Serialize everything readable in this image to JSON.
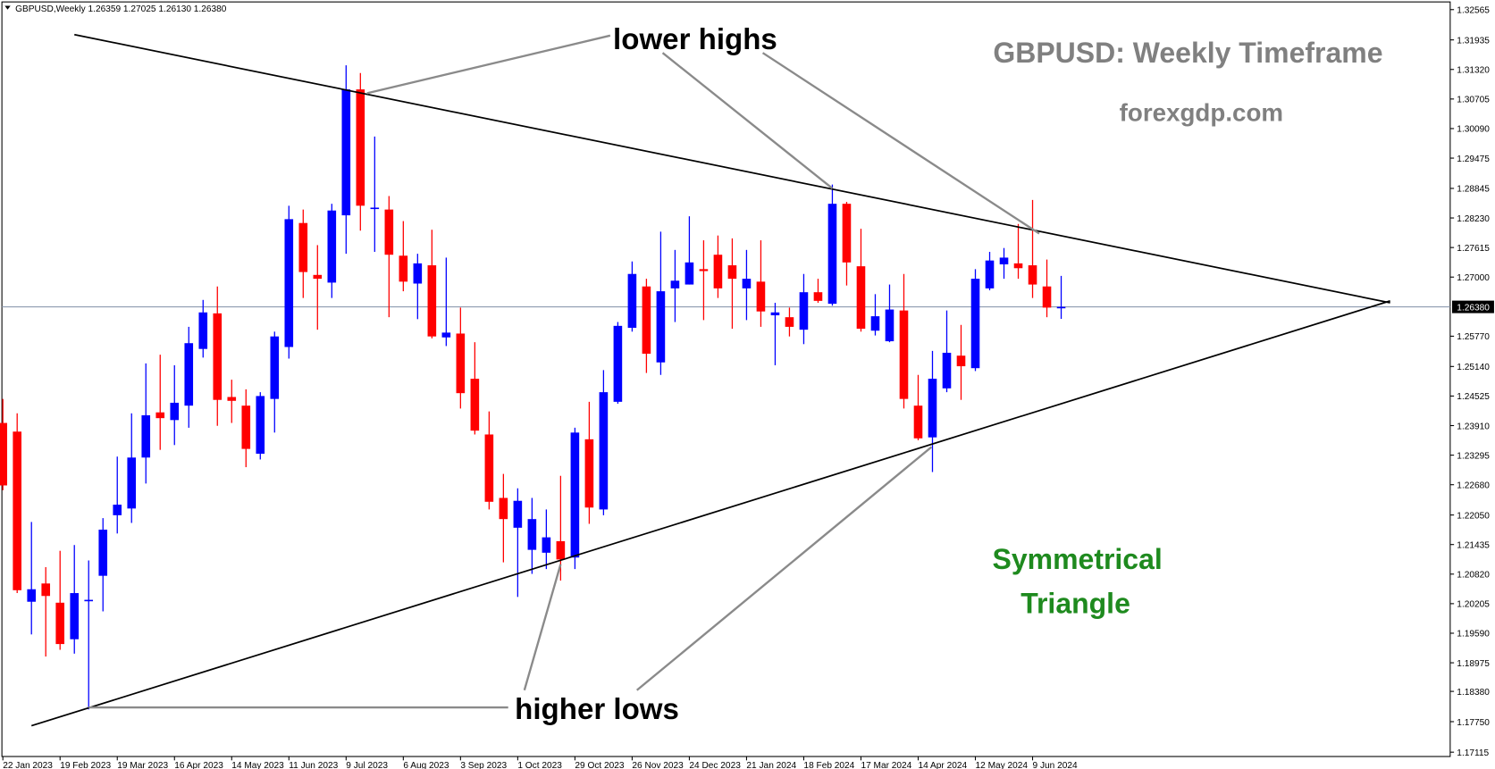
{
  "chart_data": {
    "type": "candlestick",
    "header": {
      "symbol": "GBPUSD,Weekly",
      "ohlc": [
        "1.26359",
        "1.27025",
        "1.26130",
        "1.26380"
      ]
    },
    "annotations": {
      "title": "GBPUSD: Weekly Timeframe",
      "site": "forexgdp.com",
      "pattern": [
        "Symmetrical",
        "Triangle"
      ],
      "upper": "lower highs",
      "lower": "higher lows"
    },
    "categories": [
      "22 Jan 2023",
      null,
      null,
      null,
      "19 Feb 2023",
      null,
      null,
      null,
      "19 Mar 2023",
      null,
      null,
      null,
      "16 Apr 2023",
      null,
      null,
      null,
      "14 May 2023",
      null,
      null,
      null,
      "11 Jun 2023",
      null,
      null,
      null,
      "9 Jul 2023",
      null,
      null,
      null,
      "6 Aug 2023",
      null,
      null,
      null,
      "3 Sep 2023",
      null,
      null,
      null,
      "1 Oct 2023",
      null,
      null,
      null,
      "29 Oct 2023",
      null,
      null,
      null,
      "26 Nov 2023",
      null,
      null,
      null,
      "24 Dec 2023",
      null,
      null,
      null,
      "21 Jan 2024",
      null,
      null,
      null,
      "18 Feb 2024",
      null,
      null,
      null,
      "17 Mar 2024",
      null,
      null,
      null,
      "14 Apr 2024",
      null,
      null,
      null,
      "12 May 2024",
      null,
      null,
      null,
      "9 Jun 2024",
      null,
      null
    ],
    "open": [
      1.23965,
      1.23785,
      1.20245,
      1.20625,
      1.20225,
      1.19465,
      1.20265,
      1.20785,
      1.22045,
      1.22185,
      1.23245,
      1.24185,
      1.24025,
      1.24325,
      1.25505,
      1.26245,
      1.24505,
      1.24325,
      1.23325,
      1.24465,
      1.25545,
      1.28125,
      1.27045,
      1.26885,
      1.28285,
      1.30905,
      1.28425,
      1.28405,
      1.27445,
      1.26865,
      1.27245,
      1.25745,
      1.25825,
      1.24885,
      1.23725,
      1.22405,
      1.21785,
      1.21325,
      1.21265,
      1.21505,
      1.21165,
      1.23625,
      1.22165,
      1.24405,
      1.25945,
      1.26805,
      1.25225,
      1.26765,
      1.26845,
      1.27165,
      1.27465,
      1.27245,
      1.26765,
      1.26905,
      1.26205,
      1.26165,
      1.25905,
      1.26685,
      1.26445,
      1.28525,
      1.27225,
      1.25885,
      1.25665,
      1.26305,
      1.24325,
      1.23665,
      1.24685,
      1.25365,
      1.25105,
      1.26765,
      1.27265,
      1.27285,
      1.27245,
      1.26805,
      1.26359
    ],
    "high": [
      1.24465,
      1.24165,
      1.21905,
      1.20965,
      1.21305,
      1.21425,
      1.21105,
      1.21985,
      1.23265,
      1.24165,
      1.25205,
      1.25385,
      1.25165,
      1.25965,
      1.26525,
      1.26805,
      1.24865,
      1.24665,
      1.24605,
      1.25865,
      1.28485,
      1.28405,
      1.27665,
      1.28525,
      1.31405,
      1.31245,
      1.29925,
      1.28685,
      1.28165,
      1.27485,
      1.27985,
      1.27405,
      1.26365,
      1.25645,
      1.24205,
      1.22905,
      1.22605,
      1.22405,
      1.22165,
      1.22865,
      1.23865,
      1.24405,
      1.25065,
      1.26065,
      1.27325,
      1.26965,
      1.27945,
      1.27565,
      1.28265,
      1.27765,
      1.27865,
      1.27805,
      1.27565,
      1.27765,
      1.26465,
      1.26365,
      1.27065,
      1.26965,
      1.28925,
      1.28565,
      1.28005,
      1.26645,
      1.26845,
      1.27065,
      1.24965,
      1.25465,
      1.26305,
      1.26005,
      1.27165,
      1.27525,
      1.27605,
      1.28105,
      1.28605,
      1.27365,
      1.27025
    ],
    "low": [
      1.22565,
      1.20425,
      1.19565,
      1.19105,
      1.19245,
      1.19165,
      1.18005,
      1.20045,
      1.21665,
      1.21885,
      1.22705,
      1.23405,
      1.23505,
      1.23865,
      1.25325,
      1.23905,
      1.23965,
      1.23045,
      1.23205,
      1.23765,
      1.25305,
      1.26565,
      1.25905,
      1.26565,
      1.27485,
      1.27965,
      1.27525,
      1.26165,
      1.26705,
      1.26125,
      1.25725,
      1.25565,
      1.24265,
      1.23725,
      1.22165,
      1.21065,
      1.20345,
      1.20825,
      1.20925,
      1.20685,
      1.20925,
      1.21865,
      1.22045,
      1.24365,
      1.25865,
      1.25005,
      1.24965,
      1.26065,
      1.26845,
      1.26105,
      1.26565,
      1.25925,
      1.26105,
      1.25965,
      1.25165,
      1.25765,
      1.25605,
      1.26465,
      1.26405,
      1.26825,
      1.25865,
      1.25785,
      1.25645,
      1.24265,
      1.23605,
      1.22945,
      1.24605,
      1.24445,
      1.25045,
      1.26725,
      1.26965,
      1.26965,
      1.26565,
      1.26165,
      1.2613
    ],
    "close": [
      1.22665,
      1.20485,
      1.20505,
      1.20365,
      1.19365,
      1.20425,
      1.20285,
      1.21745,
      1.22265,
      1.23245,
      1.24125,
      1.24065,
      1.24385,
      1.25625,
      1.26265,
      1.24445,
      1.24425,
      1.23425,
      1.24525,
      1.25765,
      1.28205,
      1.27105,
      1.26965,
      1.28385,
      1.30905,
      1.28485,
      1.28445,
      1.27465,
      1.26905,
      1.27285,
      1.25765,
      1.25845,
      1.24585,
      1.23805,
      1.22325,
      1.21965,
      1.22345,
      1.21965,
      1.21585,
      1.21125,
      1.23765,
      1.22205,
      1.24605,
      1.25985,
      1.27065,
      1.25405,
      1.26705,
      1.26925,
      1.27305,
      1.27125,
      1.26765,
      1.26965,
      1.26965,
      1.26285,
      1.26265,
      1.25965,
      1.26685,
      1.26505,
      1.28525,
      1.27305,
      1.25925,
      1.26185,
      1.26325,
      1.24465,
      1.23645,
      1.24885,
      1.25425,
      1.25145,
      1.26965,
      1.27345,
      1.27405,
      1.27185,
      1.26845,
      1.26365,
      1.2638
    ],
    "up_color": "#0000ff",
    "down_color": "#ff0000",
    "ylim": [
      1.17025,
      1.32725
    ],
    "yticks": [
      1.32565,
      1.31935,
      {
        "value": 1.3132,
        "label": "1.31320"
      },
      1.30705,
      {
        "value": 1.3009,
        "label": "1.30090"
      },
      1.29475,
      1.28845,
      {
        "value": 1.2823,
        "label": "1.28230"
      },
      1.27615,
      {
        "value": 1.27,
        "label": "1.27000"
      },
      {
        "value": 1.2577,
        "label": "1.25770"
      },
      {
        "value": 1.2514,
        "label": "1.25140"
      },
      1.24525,
      {
        "value": 1.2391,
        "label": "1.23910"
      },
      1.23295,
      {
        "value": 1.2268,
        "label": "1.22680"
      },
      {
        "value": 1.2205,
        "label": "1.22050"
      },
      1.21435,
      {
        "value": 1.2082,
        "label": "1.20820"
      },
      1.20205,
      {
        "value": 1.1959,
        "label": "1.19590"
      },
      1.18975,
      {
        "value": 1.1838,
        "label": "1.18380"
      },
      {
        "value": 1.1775,
        "label": "1.17750"
      },
      1.17115
    ],
    "price_line": {
      "value": 1.2638,
      "label": "1.26380"
    }
  }
}
